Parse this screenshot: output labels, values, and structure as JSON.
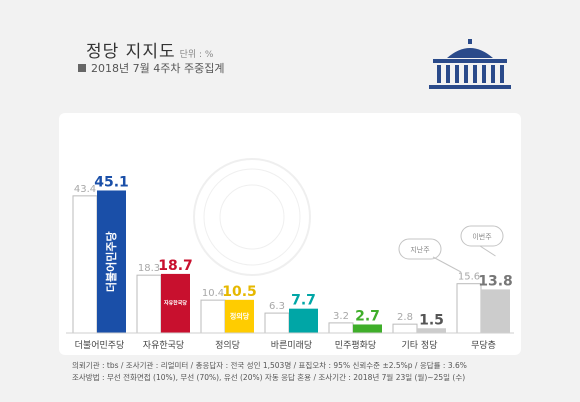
{
  "header": {
    "title": "정당 지지도",
    "unit": "단위 : %",
    "subtitle": "2018년 7월 4주차 주중집계"
  },
  "legend": {
    "prev_week": "지난주",
    "this_week": "이번주"
  },
  "footer": {
    "line1": "의뢰기관 : tbs / 조사기관 : 리얼미터 / 총응답자 : 전국 성인 1,503명 / 표집오차 : 95% 신뢰수준 ±2.5%p / 응답률 : 3.6%",
    "line2": "조사방법 : 무선 전화면접 (10%), 무선 (70%), 유선 (20%) 자동 응답 혼용 / 조사기간 : 2018년 7월 23일 (월)~25일 (수)"
  },
  "colors": {
    "prev_fill": "#ffffff",
    "prev_stroke": "#bbbbbb",
    "prev_label": "#a8a8a8",
    "logo": "#2a4a8a"
  },
  "chart_data": {
    "type": "bar",
    "title": "정당 지지도",
    "categories": [
      "더불어민주당",
      "자유한국당",
      "정의당",
      "바른미래당",
      "민주평화당",
      "기타 정당",
      "무당층"
    ],
    "series": [
      {
        "name": "지난주",
        "values": [
          43.4,
          18.3,
          10.4,
          6.3,
          3.2,
          2.8,
          15.6
        ]
      },
      {
        "name": "이번주",
        "values": [
          45.1,
          18.7,
          10.5,
          7.7,
          2.7,
          1.5,
          13.8
        ]
      }
    ],
    "bar_colors": [
      "#1a4fa8",
      "#c8102e",
      "#ffcc00",
      "#00a6a6",
      "#3fae2a",
      "#cccccc",
      "#cccccc"
    ],
    "label_colors": [
      "#1a4fa8",
      "#c8102e",
      "#e6b800",
      "#00a6a6",
      "#3fae2a",
      "#555555",
      "#777777"
    ],
    "bar_marks": [
      "더불어민주당",
      "자유한국당",
      "정의당",
      "바른미래당",
      "",
      "",
      ""
    ],
    "ylim": [
      0,
      50
    ],
    "grid": false
  }
}
